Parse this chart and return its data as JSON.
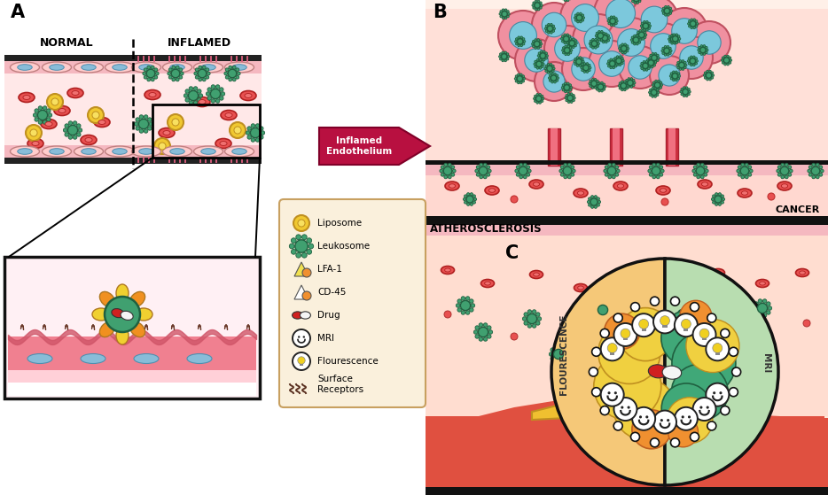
{
  "bg_color": "#ffffff",
  "panel_a_label": "A",
  "panel_b_label": "B",
  "panel_c_label": "C",
  "normal_label": "NORMAL",
  "inflamed_label": "INFLAMED",
  "arrow_label": "Inflamed\nEndothelium",
  "cancer_label": "CANCER",
  "athero_label": "ATHEROSCLEROSIS",
  "fluorescence_label": "FLOURESCENCE",
  "mri_label": "MRI",
  "legend_items": [
    "Liposome",
    "Leukosome",
    "LFA-1",
    "CD-45",
    "Drug",
    "MRI",
    "Flourescence",
    "Surface\nReceptors"
  ],
  "colors": {
    "pink_light": "#FFE0E0",
    "pink_medium": "#F4A0A0",
    "pink_dark": "#E87878",
    "red_cell": "#E85050",
    "red_dark": "#CC2020",
    "teal": "#40A070",
    "teal_dark": "#2A7050",
    "yellow": "#F0D050",
    "orange": "#F09030",
    "blue_cell": "#90C0E0",
    "blue_dark": "#6090B0",
    "drug_red": "#E03030",
    "drug_white": "#F0F0F0",
    "vessel_pink": "#FFB0B0",
    "endo_pink": "#FF8080",
    "legend_bg": "#FAF0DC",
    "legend_border": "#C8A060",
    "arrow_bg": "#B81040",
    "text_dark": "#1A1A1A",
    "black": "#111111",
    "panel_bg": "#FFF0F0",
    "zoom_bg": "#FFE8F0",
    "green_bg": "#B8DDB0",
    "orange_bg": "#F5C878",
    "cancer_pink": "#F4A8B0",
    "cancer_inner": "#8CCCE0",
    "athero_red": "#E05840",
    "athero_yellow": "#F0C030"
  }
}
